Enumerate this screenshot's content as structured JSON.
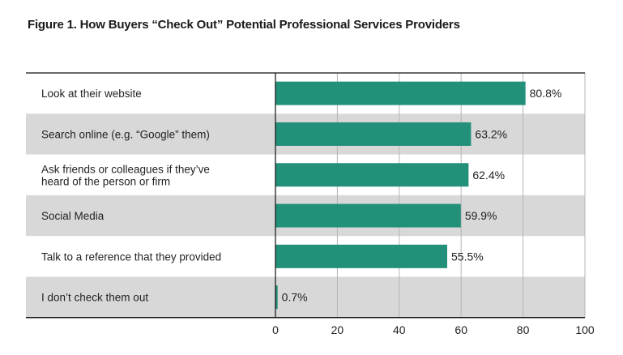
{
  "title": "Figure 1. How Buyers “Check Out” Potential Professional Services Providers",
  "colors": {
    "bar": "#23917a",
    "band": "#d8d8d9",
    "grid": "#b5b5b5",
    "axis": "#111111"
  },
  "chart_data": {
    "type": "bar",
    "orientation": "horizontal",
    "categories": [
      [
        "Look at their website"
      ],
      [
        "Search online (e.g. “Google” them)"
      ],
      [
        "Ask friends or colleagues if they’ve",
        "heard of the person or firm"
      ],
      [
        "Social Media"
      ],
      [
        "Talk to a reference that they provided"
      ],
      [
        "I don’t check them out"
      ]
    ],
    "values": [
      80.8,
      63.2,
      62.4,
      59.9,
      55.5,
      0.7
    ],
    "value_labels": [
      "80.8%",
      "63.2%",
      "62.4%",
      "59.9%",
      "55.5%",
      "0.7%"
    ],
    "xlim": [
      0,
      100
    ],
    "xticks": [
      "0",
      "20",
      "40",
      "60",
      "80",
      "100"
    ],
    "grid": true,
    "legend": "none"
  }
}
